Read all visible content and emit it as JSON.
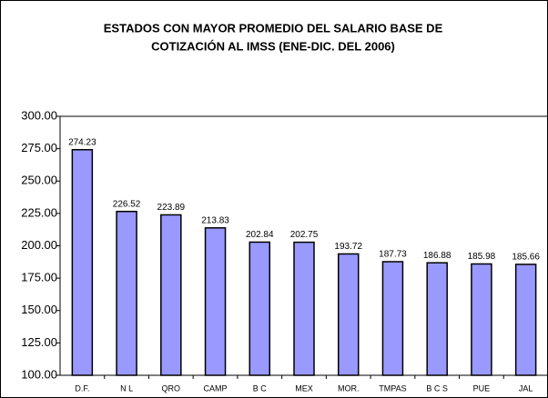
{
  "chart_data": {
    "type": "bar",
    "title": [
      "ESTADOS CON MAYOR PROMEDIO DEL SALARIO BASE DE",
      "COTIZACIÓN AL IMSS (ENE-DIC. DEL 2006)"
    ],
    "categories": [
      "D.F.",
      "N L",
      "QRO",
      "CAMP",
      "B C",
      "MEX",
      "MOR.",
      "TMPAS",
      "B C S",
      "PUE",
      "JAL"
    ],
    "values": [
      274.23,
      226.52,
      223.89,
      213.83,
      202.84,
      202.75,
      193.72,
      187.73,
      186.88,
      185.98,
      185.66
    ],
    "color": "#9999ff",
    "ylim": [
      100,
      300
    ],
    "yticks": [
      {
        "value": 100,
        "label": "100.00"
      },
      {
        "value": 125,
        "label": "125.00"
      },
      {
        "value": 150,
        "label": "150.00"
      },
      {
        "value": 175,
        "label": "175.00"
      },
      {
        "value": 200,
        "label": "200.00"
      },
      {
        "value": 225,
        "label": "225.00"
      },
      {
        "value": 250,
        "label": "250.00"
      },
      {
        "value": 275,
        "label": "275.00"
      },
      {
        "value": 300,
        "label": "300.00"
      }
    ],
    "grid": false
  }
}
